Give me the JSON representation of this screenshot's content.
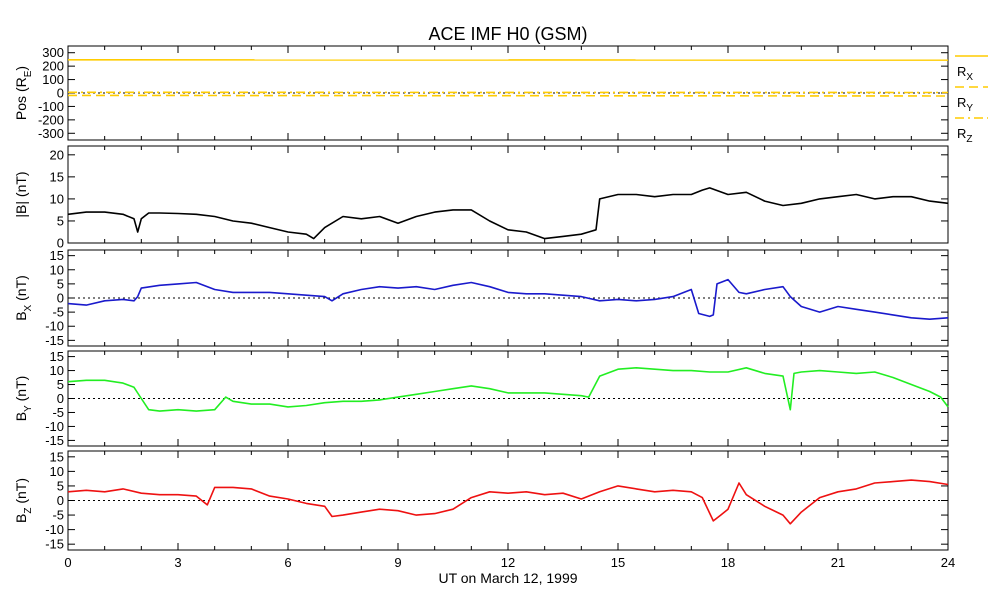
{
  "chart_data": {
    "type": "line",
    "title": "ACE IMF H0 (GSM)",
    "xlabel": "UT on March 12, 1999",
    "x_ticks": [
      "0",
      "3",
      "6",
      "9",
      "12",
      "15",
      "18",
      "21",
      "24"
    ],
    "xlim": [
      0,
      24
    ],
    "panels": [
      {
        "ylabel": {
          "main": "Pos (R",
          "sub": "E",
          "suffix": ")"
        },
        "ylim": [
          -350,
          350
        ],
        "yticks": [
          "300",
          "200",
          "100",
          "0",
          "-100",
          "-200",
          "-300"
        ],
        "zero_line": true,
        "legend": [
          {
            "main": "R",
            "sub": "X",
            "color": "#ffcc00",
            "dash": "solid"
          },
          {
            "main": "R",
            "sub": "Y",
            "color": "#ffcc00",
            "dash": "dash"
          },
          {
            "main": "R",
            "sub": "Z",
            "color": "#ffcc00",
            "dash": "dashdot"
          }
        ],
        "series": [
          {
            "color": "#ffcc00",
            "dash": "solid",
            "x": [
              0,
              24
            ],
            "y": [
              247,
              245
            ]
          },
          {
            "color": "#ffcc00",
            "dash": "dash",
            "x": [
              0,
              24
            ],
            "y": [
              -18,
              -22
            ]
          },
          {
            "color": "#ffcc00",
            "dash": "dashdot",
            "x": [
              0,
              24
            ],
            "y": [
              5,
              4
            ]
          }
        ]
      },
      {
        "ylabel": {
          "main": "|B| (nT)",
          "sub": "",
          "suffix": ""
        },
        "ylim": [
          0,
          22
        ],
        "yticks": [
          "20",
          "15",
          "10",
          "5",
          "0"
        ],
        "zero_line": false,
        "series": [
          {
            "color": "#000000",
            "x": [
              0,
              0.5,
              1.0,
              1.5,
              1.8,
              1.9,
              2.0,
              2.2,
              2.5,
              3.0,
              3.5,
              4.0,
              4.5,
              5.0,
              5.5,
              6.0,
              6.5,
              6.7,
              7.0,
              7.5,
              8.0,
              8.5,
              9.0,
              9.5,
              10.0,
              10.5,
              11.0,
              11.5,
              12.0,
              12.5,
              13.0,
              13.5,
              14.0,
              14.2,
              14.4,
              14.5,
              15.0,
              15.5,
              16.0,
              16.5,
              17.0,
              17.3,
              17.5,
              18.0,
              18.5,
              19.0,
              19.5,
              20.0,
              20.5,
              21.0,
              21.5,
              22.0,
              22.5,
              23.0,
              23.5,
              24.0
            ],
            "y": [
              6.5,
              7.0,
              7.0,
              6.5,
              5.5,
              2.5,
              5.5,
              6.8,
              6.8,
              6.7,
              6.5,
              6.0,
              5.0,
              4.5,
              3.5,
              2.5,
              2.0,
              1.0,
              3.5,
              6.0,
              5.5,
              6.0,
              4.5,
              6.0,
              7.0,
              7.5,
              7.5,
              5.0,
              3.0,
              2.5,
              1.0,
              1.5,
              2.0,
              2.5,
              3.0,
              10.0,
              11.0,
              11.0,
              10.5,
              11.0,
              11.0,
              12.0,
              12.5,
              11.0,
              11.5,
              9.5,
              8.5,
              9.0,
              10.0,
              10.5,
              11.0,
              10.0,
              10.5,
              10.5,
              9.5,
              9.0
            ]
          }
        ]
      },
      {
        "ylabel": {
          "main": "B",
          "sub": "X",
          "suffix": " (nT)"
        },
        "ylim": [
          -17,
          17
        ],
        "yticks": [
          "15",
          "10",
          "5",
          "0",
          "-5",
          "-10",
          "-15"
        ],
        "zero_line": true,
        "series": [
          {
            "color": "#1a1acc",
            "x": [
              0,
              0.5,
              1.0,
              1.5,
              1.8,
              1.9,
              2.0,
              2.5,
              3.0,
              3.5,
              4.0,
              4.5,
              5.0,
              5.5,
              6.0,
              6.5,
              7.0,
              7.2,
              7.5,
              8.0,
              8.5,
              9.0,
              9.5,
              10.0,
              10.5,
              11.0,
              11.5,
              12.0,
              12.5,
              13.0,
              13.5,
              14.0,
              14.5,
              15.0,
              15.5,
              16.0,
              16.5,
              17.0,
              17.2,
              17.5,
              17.6,
              17.7,
              18.0,
              18.3,
              18.5,
              19.0,
              19.5,
              19.7,
              20.0,
              20.5,
              21.0,
              21.5,
              22.0,
              22.5,
              23.0,
              23.5,
              24.0
            ],
            "y": [
              -2.0,
              -2.5,
              -1.0,
              -0.5,
              -1.0,
              0.5,
              3.5,
              4.5,
              5.0,
              5.5,
              3.0,
              2.0,
              2.0,
              2.0,
              1.5,
              1.0,
              0.5,
              -1.0,
              1.5,
              3.0,
              4.0,
              3.5,
              4.0,
              3.0,
              4.5,
              5.5,
              4.0,
              2.0,
              1.5,
              1.5,
              1.0,
              0.5,
              -1.0,
              -0.5,
              -1.0,
              -0.5,
              0.5,
              3.0,
              -5.5,
              -6.5,
              -6.0,
              5.0,
              6.5,
              2.0,
              1.5,
              3.0,
              4.0,
              0.5,
              -3.0,
              -5.0,
              -3.0,
              -4.0,
              -5.0,
              -6.0,
              -7.0,
              -7.5,
              -7.0
            ]
          }
        ]
      },
      {
        "ylabel": {
          "main": "B",
          "sub": "Y",
          "suffix": " (nT)"
        },
        "ylim": [
          -17,
          17
        ],
        "yticks": [
          "15",
          "10",
          "5",
          "0",
          "-5",
          "-10",
          "-15"
        ],
        "zero_line": true,
        "series": [
          {
            "color": "#22ee22",
            "x": [
              0,
              0.5,
              1.0,
              1.5,
              1.8,
              2.0,
              2.2,
              2.5,
              3.0,
              3.5,
              4.0,
              4.3,
              4.5,
              5.0,
              5.5,
              6.0,
              6.5,
              7.0,
              7.5,
              8.0,
              8.5,
              9.0,
              9.5,
              10.0,
              10.5,
              11.0,
              11.5,
              12.0,
              12.5,
              13.0,
              13.5,
              14.0,
              14.2,
              14.5,
              15.0,
              15.5,
              16.0,
              16.5,
              17.0,
              17.5,
              18.0,
              18.5,
              19.0,
              19.5,
              19.7,
              19.8,
              20.0,
              20.5,
              21.0,
              21.5,
              22.0,
              22.5,
              23.0,
              23.5,
              23.8,
              24.0
            ],
            "y": [
              6.0,
              6.5,
              6.5,
              5.5,
              4.0,
              0.0,
              -4.0,
              -4.5,
              -4.0,
              -4.5,
              -4.0,
              0.5,
              -1.0,
              -2.0,
              -2.0,
              -3.0,
              -2.5,
              -1.5,
              -1.0,
              -1.0,
              -0.5,
              0.5,
              1.5,
              2.5,
              3.5,
              4.5,
              3.5,
              2.0,
              2.0,
              2.0,
              1.5,
              1.0,
              0.5,
              8.0,
              10.5,
              11.0,
              10.5,
              10.0,
              10.0,
              9.5,
              9.5,
              11.0,
              9.0,
              8.0,
              -4.0,
              9.0,
              9.5,
              10.0,
              9.5,
              9.0,
              9.5,
              7.5,
              5.0,
              2.5,
              0.5,
              -3.0
            ]
          }
        ]
      },
      {
        "ylabel": {
          "main": "B",
          "sub": "Z",
          "suffix": " (nT)"
        },
        "ylim": [
          -17,
          17
        ],
        "yticks": [
          "15",
          "10",
          "5",
          "0",
          "-5",
          "-10",
          "-15"
        ],
        "zero_line": true,
        "series": [
          {
            "color": "#ee1111",
            "x": [
              0,
              0.5,
              1.0,
              1.5,
              2.0,
              2.5,
              3.0,
              3.5,
              3.8,
              4.0,
              4.5,
              5.0,
              5.5,
              6.0,
              6.5,
              7.0,
              7.2,
              7.5,
              8.0,
              8.5,
              9.0,
              9.5,
              10.0,
              10.5,
              11.0,
              11.5,
              12.0,
              12.5,
              13.0,
              13.5,
              14.0,
              14.5,
              15.0,
              15.5,
              16.0,
              16.5,
              17.0,
              17.3,
              17.6,
              17.8,
              18.0,
              18.3,
              18.5,
              19.0,
              19.5,
              19.7,
              20.0,
              20.5,
              21.0,
              21.5,
              22.0,
              22.5,
              23.0,
              23.5,
              24.0
            ],
            "y": [
              3.0,
              3.5,
              3.0,
              4.0,
              2.5,
              2.0,
              2.0,
              1.5,
              -1.5,
              4.5,
              4.5,
              4.0,
              1.5,
              0.5,
              -1.0,
              -2.0,
              -5.5,
              -5.0,
              -4.0,
              -3.0,
              -3.5,
              -5.0,
              -4.5,
              -3.0,
              1.0,
              3.0,
              2.5,
              3.0,
              2.0,
              2.5,
              0.5,
              3.0,
              5.0,
              4.0,
              3.0,
              3.5,
              3.0,
              1.0,
              -7.0,
              -5.0,
              -3.0,
              6.0,
              2.0,
              -2.0,
              -5.0,
              -8.0,
              -4.0,
              1.0,
              3.0,
              4.0,
              6.0,
              6.5,
              7.0,
              6.5,
              5.5
            ]
          }
        ]
      }
    ]
  }
}
